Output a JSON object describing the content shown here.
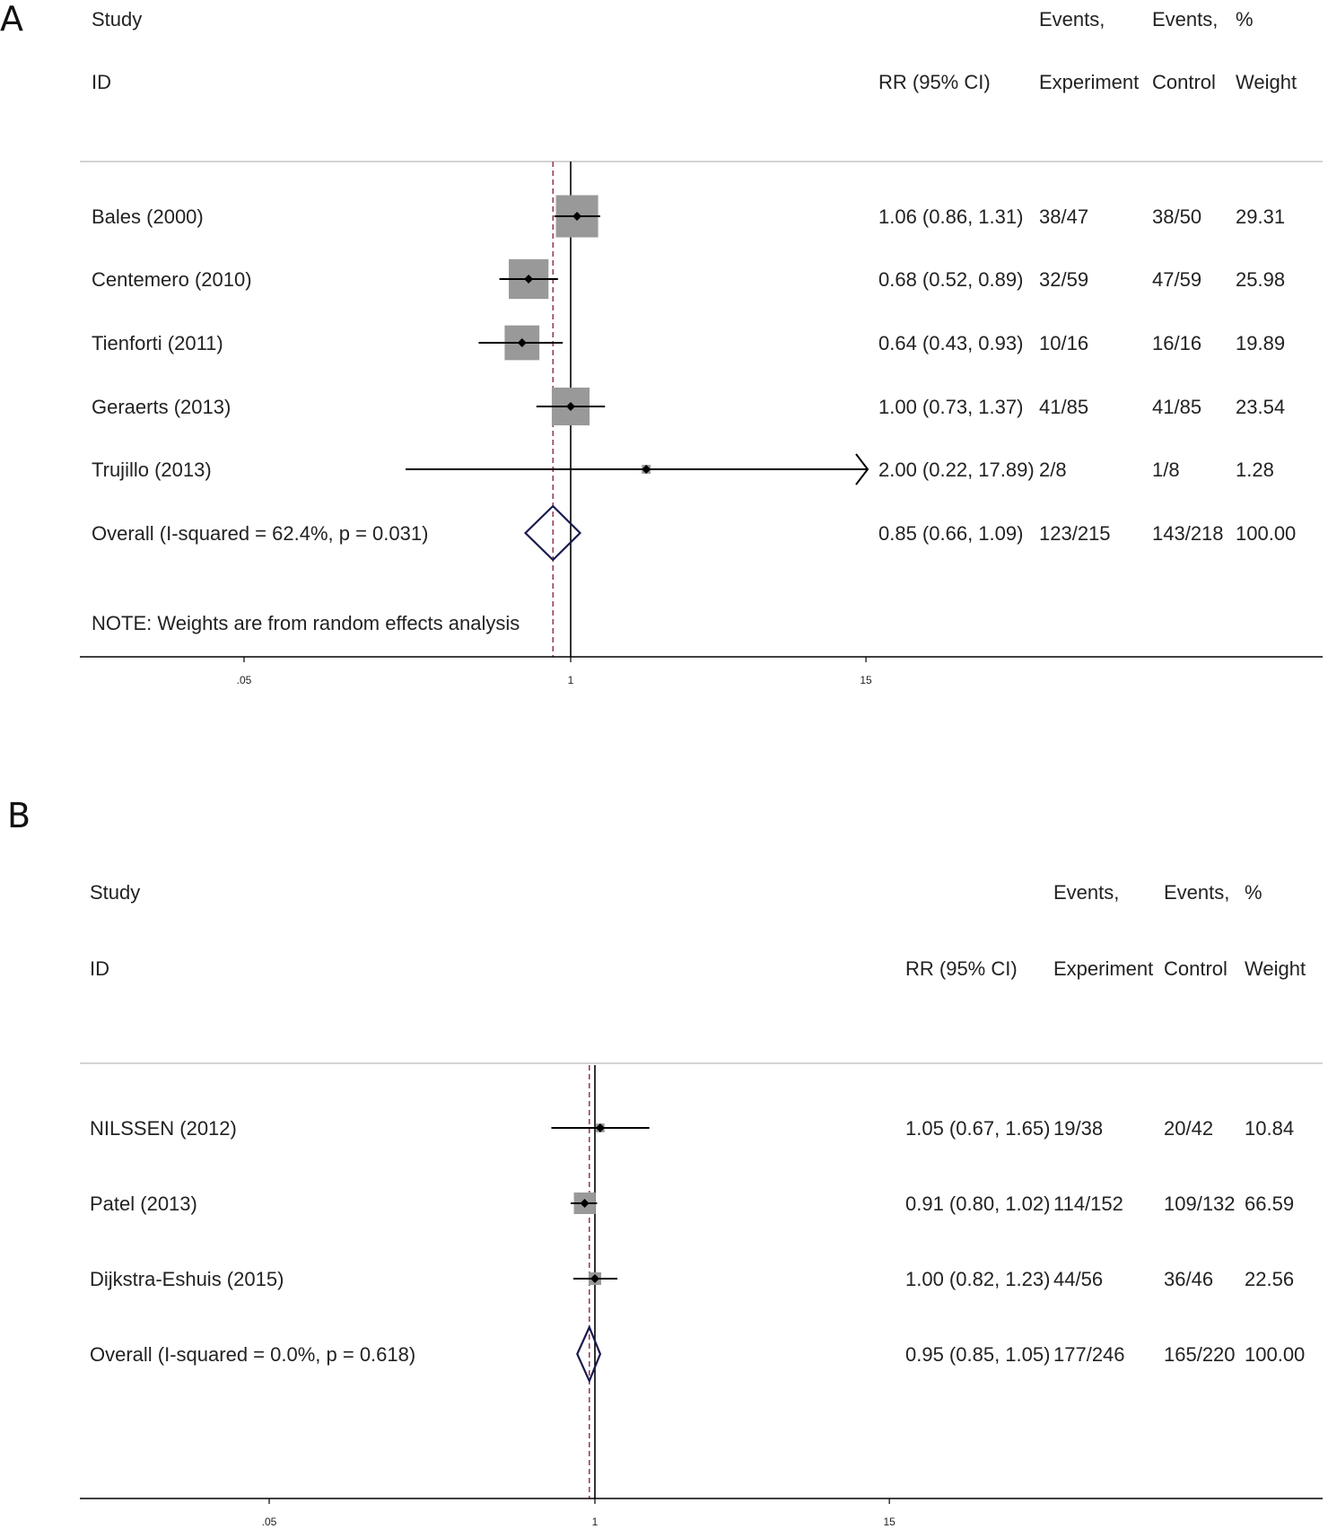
{
  "chart_data": [
    {
      "type": "forest",
      "panel_label": "A",
      "headers": {
        "study_line1": "Study",
        "study_line2": "ID",
        "rr": "RR (95% CI)",
        "events_exp_line1": "Events,",
        "events_exp_line2": "Experiment",
        "events_ctrl_line1": "Events,",
        "events_ctrl_line2": "Control",
        "weight_line1": "%",
        "weight_line2": "Weight"
      },
      "x_scale": "log",
      "x_ticks": [
        ".05",
        "1",
        "15"
      ],
      "x_tick_values": [
        0.05,
        1,
        15
      ],
      "null_line": 1,
      "overall_line": 0.85,
      "studies": [
        {
          "label": "Bales (2000)",
          "rr": 1.06,
          "lo": 0.86,
          "hi": 1.31,
          "rr_text": "1.06 (0.86, 1.31)",
          "exp": "38/47",
          "ctrl": "38/50",
          "weight": "29.31",
          "w": 29.31
        },
        {
          "label": "Centemero (2010)",
          "rr": 0.68,
          "lo": 0.52,
          "hi": 0.89,
          "rr_text": "0.68 (0.52, 0.89)",
          "exp": "32/59",
          "ctrl": "47/59",
          "weight": "25.98",
          "w": 25.98
        },
        {
          "label": "Tienforti (2011)",
          "rr": 0.64,
          "lo": 0.43,
          "hi": 0.93,
          "rr_text": "0.64 (0.43, 0.93)",
          "exp": "10/16",
          "ctrl": "16/16",
          "weight": "19.89",
          "w": 19.89
        },
        {
          "label": "Geraerts (2013)",
          "rr": 1.0,
          "lo": 0.73,
          "hi": 1.37,
          "rr_text": "1.00 (0.73, 1.37)",
          "exp": "41/85",
          "ctrl": "41/85",
          "weight": "23.54",
          "w": 23.54
        },
        {
          "label": "Trujillo  (2013)",
          "rr": 2.0,
          "lo": 0.22,
          "hi": 17.89,
          "rr_text": "2.00 (0.22, 17.89)",
          "exp": "2/8",
          "ctrl": "1/8",
          "weight": "1.28",
          "w": 1.28,
          "arrow_right": true
        }
      ],
      "overall": {
        "label": "Overall  (I-squared = 62.4%, p = 0.031)",
        "rr": 0.85,
        "lo": 0.66,
        "hi": 1.09,
        "rr_text": "0.85 (0.66, 1.09)",
        "exp": "123/215",
        "ctrl": "143/218",
        "weight": "100.00"
      },
      "note": "NOTE: Weights are from random effects analysis"
    },
    {
      "type": "forest",
      "panel_label": "B",
      "headers": {
        "study_line1": "Study",
        "study_line2": "ID",
        "rr": "RR (95% CI)",
        "events_exp_line1": "Events,",
        "events_exp_line2": "Experiment",
        "events_ctrl_line1": "Events,",
        "events_ctrl_line2": "Control",
        "weight_line1": "%",
        "weight_line2": "Weight"
      },
      "x_scale": "log",
      "x_ticks": [
        ".05",
        "1",
        "15"
      ],
      "x_tick_values": [
        0.05,
        1,
        15
      ],
      "null_line": 1,
      "overall_line": 0.95,
      "studies": [
        {
          "label": "NILSSEN (2012)",
          "rr": 1.05,
          "lo": 0.67,
          "hi": 1.65,
          "rr_text": "1.05 (0.67, 1.65)",
          "exp": "19/38",
          "ctrl": "20/42",
          "weight": "10.84",
          "w": 10.84
        },
        {
          "label": "Patel (2013)",
          "rr": 0.91,
          "lo": 0.8,
          "hi": 1.02,
          "rr_text": "0.91 (0.80, 1.02)",
          "exp": "114/152",
          "ctrl": "109/132",
          "weight": "66.59",
          "w": 66.59
        },
        {
          "label": "Dijkstra-Eshuis (2015)",
          "rr": 1.0,
          "lo": 0.82,
          "hi": 1.23,
          "rr_text": "1.00 (0.82, 1.23)",
          "exp": "44/56",
          "ctrl": "36/46",
          "weight": "22.56",
          "w": 22.56
        }
      ],
      "overall": {
        "label": "Overall  (I-squared = 0.0%, p = 0.618)",
        "rr": 0.95,
        "lo": 0.85,
        "hi": 1.05,
        "rr_text": "0.95 (0.85, 1.05)",
        "exp": "177/246",
        "ctrl": "165/220",
        "weight": "100.00"
      },
      "note": ""
    }
  ],
  "colors": {
    "box": "#999999",
    "ci": "#000000",
    "null_line": "#000000",
    "overall_line": "#8b2a4a",
    "diamond": "#1a1a4e",
    "rule": "#bbbbbb"
  }
}
